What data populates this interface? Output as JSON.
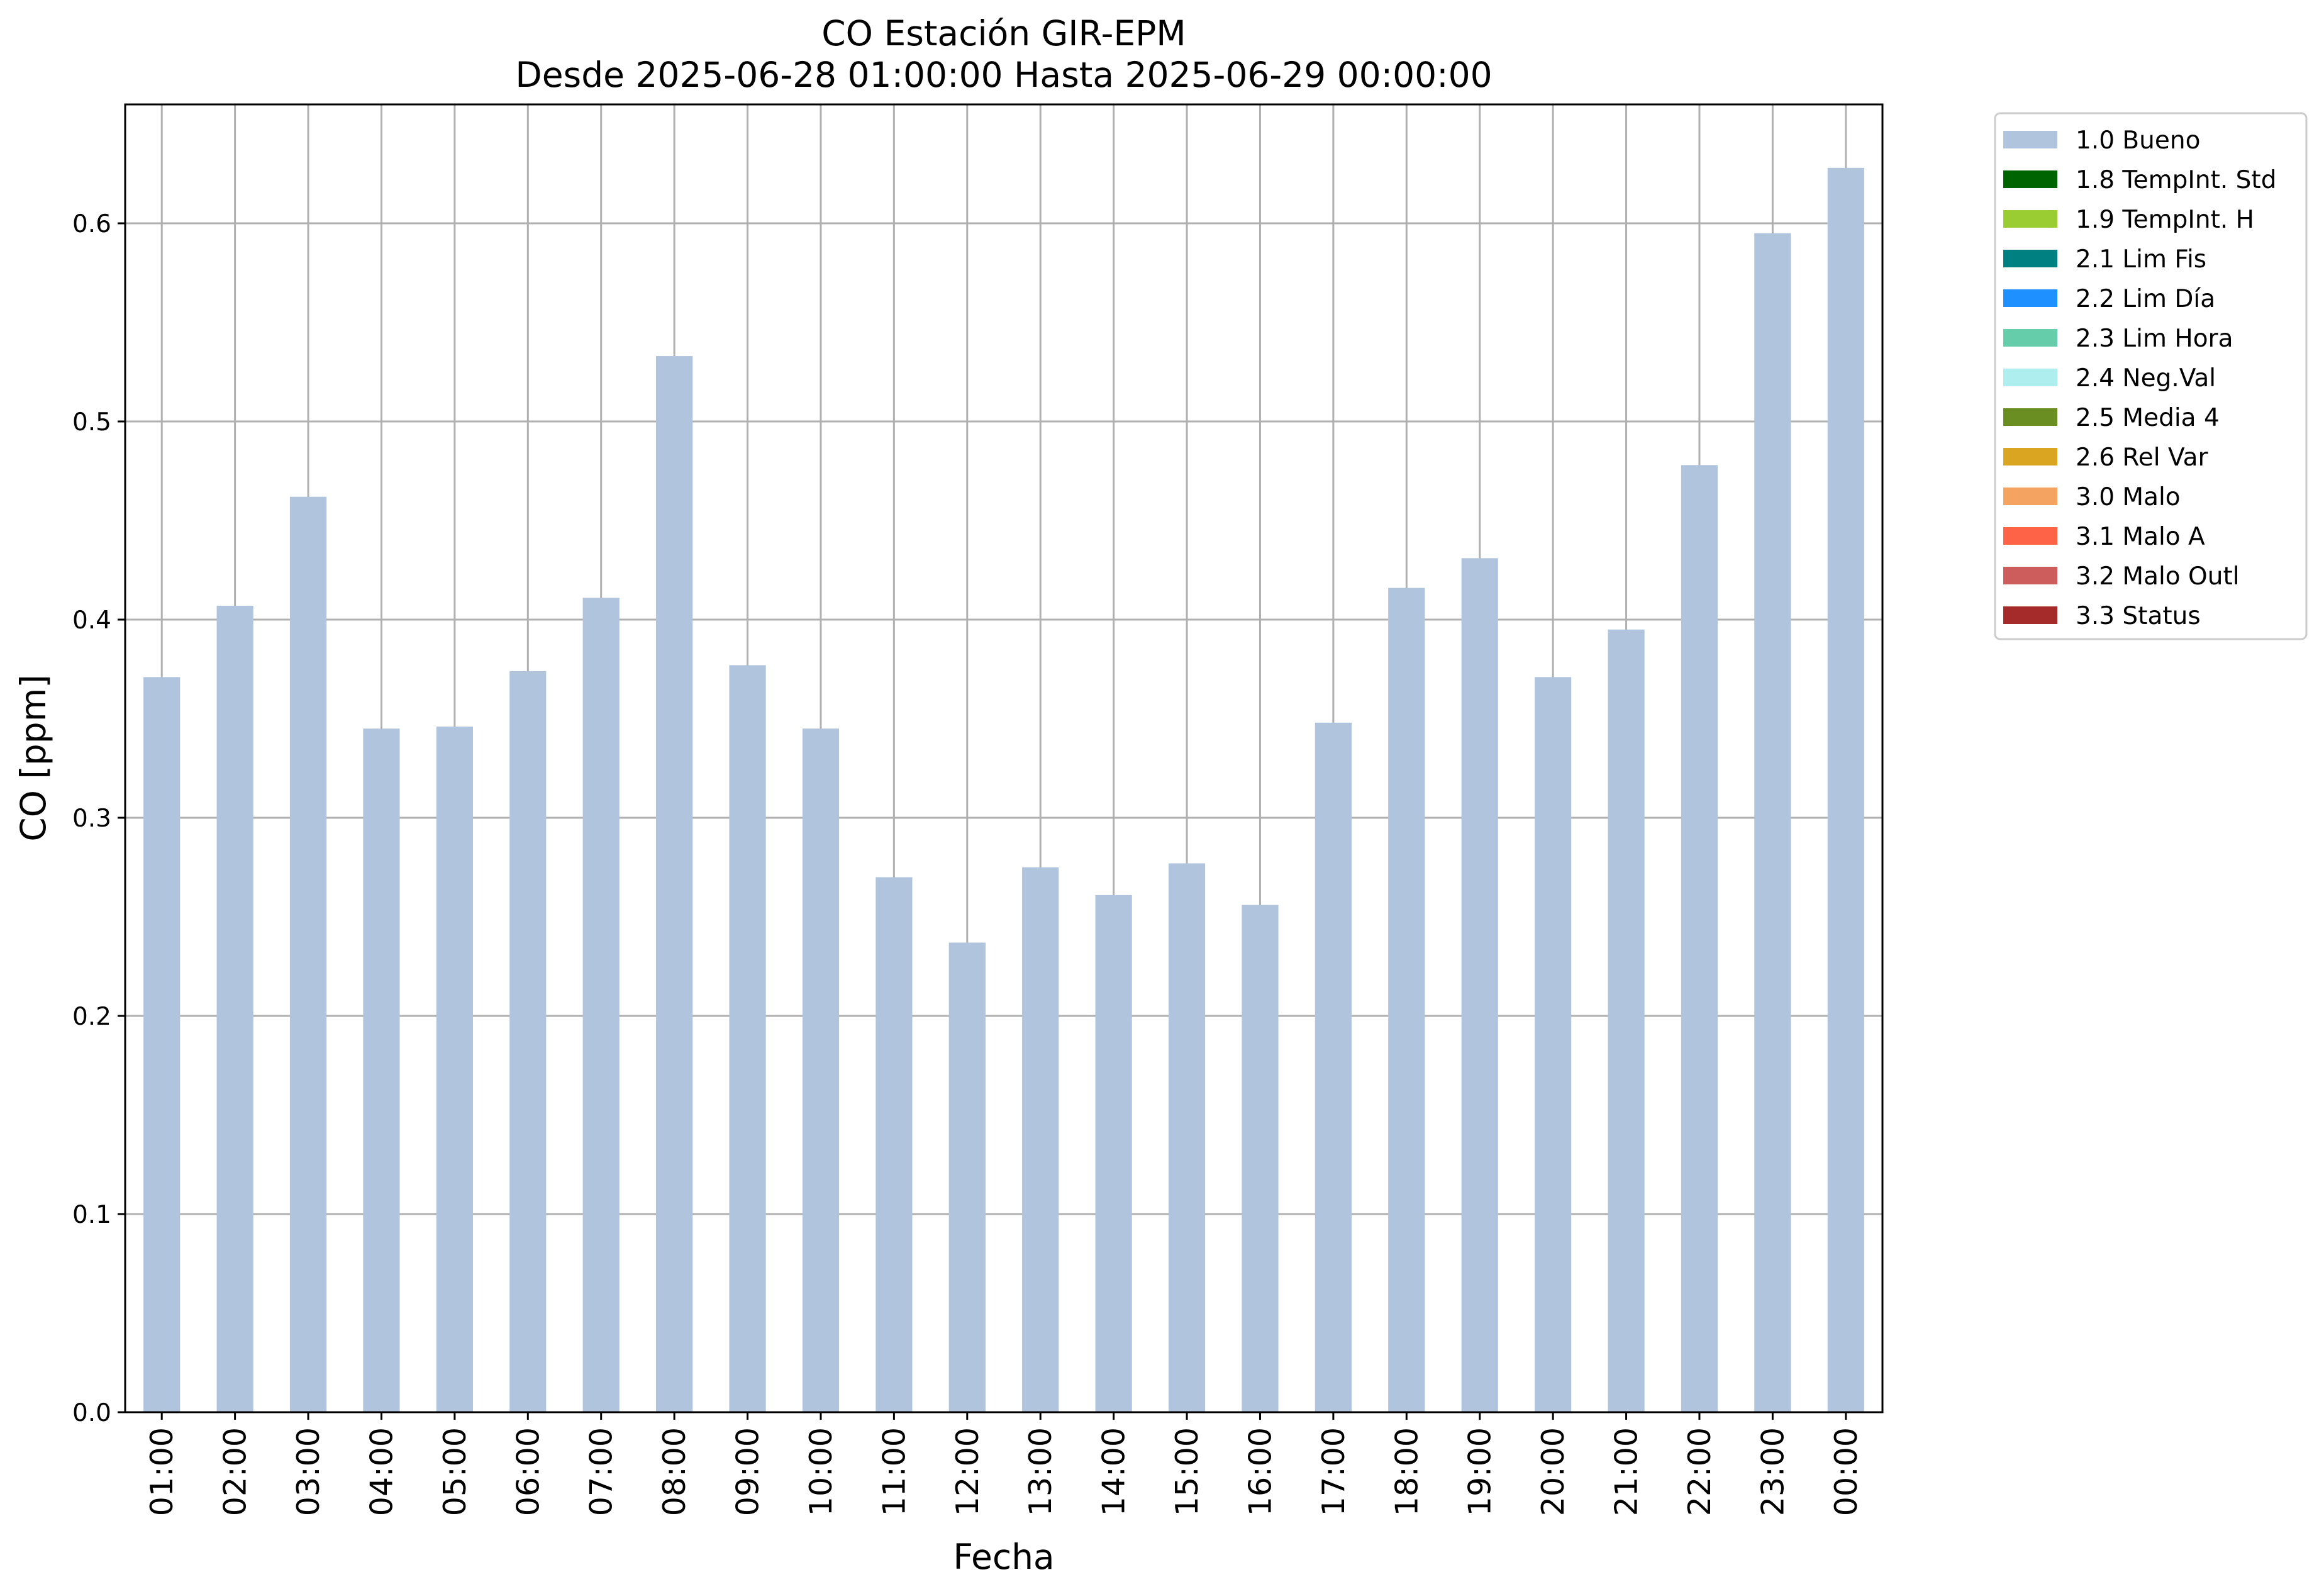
{
  "chart_data": {
    "type": "bar",
    "title": "CO Estación GIR-EPM",
    "subtitle": "Desde 2025-06-28 01:00:00 Hasta 2025-06-29 00:00:00",
    "xlabel": "Fecha",
    "ylabel": "CO [ppm]",
    "ylim": [
      0,
      0.66
    ],
    "yticks": [
      "0.0",
      "0.1",
      "0.2",
      "0.3",
      "0.4",
      "0.5",
      "0.6"
    ],
    "grid": true,
    "legend_position": "outside-top-right",
    "categories": [
      "01:00",
      "02:00",
      "03:00",
      "04:00",
      "05:00",
      "06:00",
      "07:00",
      "08:00",
      "09:00",
      "10:00",
      "11:00",
      "12:00",
      "13:00",
      "14:00",
      "15:00",
      "16:00",
      "17:00",
      "18:00",
      "19:00",
      "20:00",
      "21:00",
      "22:00",
      "23:00",
      "00:00"
    ],
    "series": [
      {
        "name": "1.0 Bueno",
        "color": "#b0c4de",
        "values": [
          0.371,
          0.407,
          0.462,
          0.345,
          0.346,
          0.374,
          0.411,
          0.533,
          0.377,
          0.345,
          0.27,
          0.237,
          0.275,
          0.261,
          0.277,
          0.256,
          0.348,
          0.416,
          0.431,
          0.371,
          0.395,
          0.478,
          0.595,
          0.628
        ]
      }
    ],
    "legend": [
      {
        "label": "1.0 Bueno",
        "color": "#b0c4de"
      },
      {
        "label": "1.8 TempInt. Std",
        "color": "#006400"
      },
      {
        "label": "1.9 TempInt. H",
        "color": "#9acd32"
      },
      {
        "label": "2.1 Lim Fis",
        "color": "#008080"
      },
      {
        "label": "2.2 Lim Día",
        "color": "#1e90ff"
      },
      {
        "label": "2.3 Lim Hora",
        "color": "#66cdaa"
      },
      {
        "label": "2.4 Neg.Val",
        "color": "#afeeee"
      },
      {
        "label": "2.5 Media 4",
        "color": "#6b8e23"
      },
      {
        "label": "2.6 Rel Var",
        "color": "#daa520"
      },
      {
        "label": "3.0 Malo",
        "color": "#f4a460"
      },
      {
        "label": "3.1 Malo A",
        "color": "#ff6347"
      },
      {
        "label": "3.2 Malo Outl",
        "color": "#cd5c5c"
      },
      {
        "label": "3.3 Status",
        "color": "#a52a2a"
      }
    ]
  }
}
